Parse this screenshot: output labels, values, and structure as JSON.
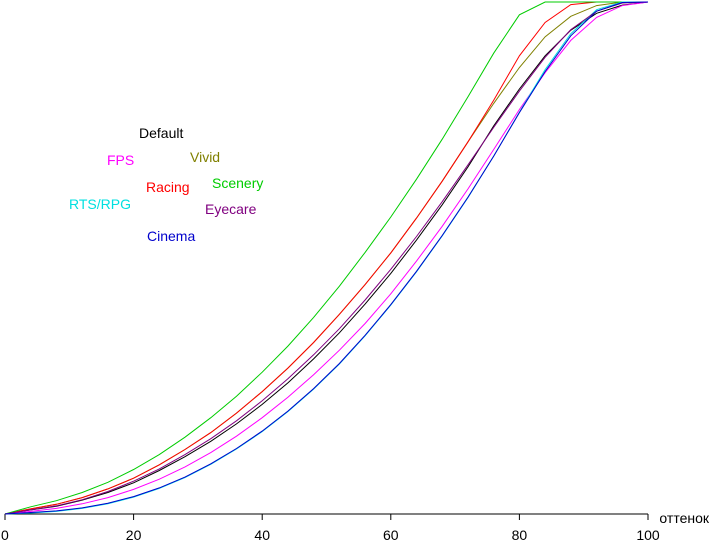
{
  "chart_data": {
    "type": "line",
    "title": "",
    "xlabel": "оттенок",
    "ylabel": "",
    "xlim": [
      0,
      100
    ],
    "ylim": [
      0,
      100
    ],
    "grid": false,
    "x_ticks": [
      0,
      20,
      40,
      60,
      80,
      100
    ],
    "x_tick_labels": [
      "0",
      "20",
      "40",
      "60",
      "80",
      "100"
    ],
    "x": [
      0,
      4,
      8,
      12,
      16,
      20,
      24,
      28,
      32,
      36,
      40,
      44,
      48,
      52,
      56,
      60,
      64,
      68,
      72,
      76,
      80,
      84,
      88,
      92,
      96,
      100
    ],
    "series": [
      {
        "name": "Default",
        "color": "#000000",
        "values": [
          0,
          0.8,
          1.5,
          2.7,
          4.2,
          6.1,
          8.5,
          11.2,
          14.2,
          17.6,
          21.4,
          25.6,
          30.3,
          35.4,
          41.0,
          47.0,
          53.5,
          60.4,
          67.8,
          75.8,
          83.0,
          89.5,
          94.5,
          97.8,
          99.4,
          100
        ]
      },
      {
        "name": "FPS",
        "color": "#ff00ff",
        "values": [
          0,
          0.5,
          1.1,
          2.0,
          3.2,
          4.8,
          6.8,
          9.2,
          12.0,
          15.2,
          18.8,
          22.8,
          27.2,
          32.0,
          37.2,
          43.0,
          49.4,
          56.2,
          63.5,
          71.2,
          79.0,
          86.2,
          92.5,
          97.0,
          99.3,
          100
        ]
      },
      {
        "name": "Vivid",
        "color": "#808000",
        "values": [
          0,
          1.0,
          1.9,
          3.2,
          4.9,
          7.0,
          9.6,
          12.6,
          15.9,
          19.7,
          23.9,
          28.5,
          33.5,
          39.0,
          44.8,
          51.0,
          57.8,
          65.0,
          72.7,
          80.2,
          87.2,
          93.2,
          97.2,
          99.3,
          100,
          100
        ]
      },
      {
        "name": "Racing",
        "color": "#ff0000",
        "values": [
          0,
          1.0,
          1.9,
          3.2,
          4.9,
          7.0,
          9.6,
          12.6,
          15.9,
          19.7,
          23.9,
          28.5,
          33.5,
          39.0,
          44.8,
          51.0,
          57.8,
          65.0,
          72.7,
          80.8,
          89.5,
          96.0,
          99.5,
          100,
          100,
          100
        ]
      },
      {
        "name": "Scenery",
        "color": "#00cc00",
        "values": [
          0,
          1.4,
          2.6,
          4.2,
          6.2,
          8.7,
          11.6,
          15.0,
          18.8,
          23.0,
          27.7,
          32.8,
          38.4,
          44.5,
          51.1,
          58.0,
          65.4,
          73.2,
          81.5,
          90.0,
          97.5,
          100,
          100,
          100,
          100,
          100
        ]
      },
      {
        "name": "RTS/RPG",
        "color": "#00e0e0",
        "values": [
          0,
          0.2,
          0.5,
          1.1,
          2.0,
          3.3,
          5.0,
          7.1,
          9.7,
          12.7,
          16.1,
          20.0,
          24.4,
          29.3,
          34.8,
          40.8,
          47.3,
          54.3,
          61.8,
          69.9,
          78.5,
          86.8,
          93.8,
          98.5,
          100,
          100
        ]
      },
      {
        "name": "Eyecare",
        "color": "#800080",
        "values": [
          0,
          0.8,
          1.6,
          2.8,
          4.4,
          6.4,
          8.8,
          11.6,
          14.7,
          18.2,
          22.1,
          26.4,
          31.1,
          36.2,
          41.8,
          47.8,
          54.2,
          61.0,
          68.2,
          75.5,
          82.6,
          89.2,
          94.6,
          98.2,
          99.8,
          100
        ]
      },
      {
        "name": "Cinema",
        "color": "#0000cc",
        "values": [
          0,
          0.3,
          0.6,
          1.2,
          2.1,
          3.4,
          5.1,
          7.2,
          9.8,
          12.8,
          16.2,
          20.1,
          24.5,
          29.4,
          34.9,
          40.9,
          47.4,
          54.4,
          61.9,
          69.9,
          78.4,
          86.4,
          93.4,
          98.2,
          99.9,
          100
        ]
      }
    ]
  }
}
